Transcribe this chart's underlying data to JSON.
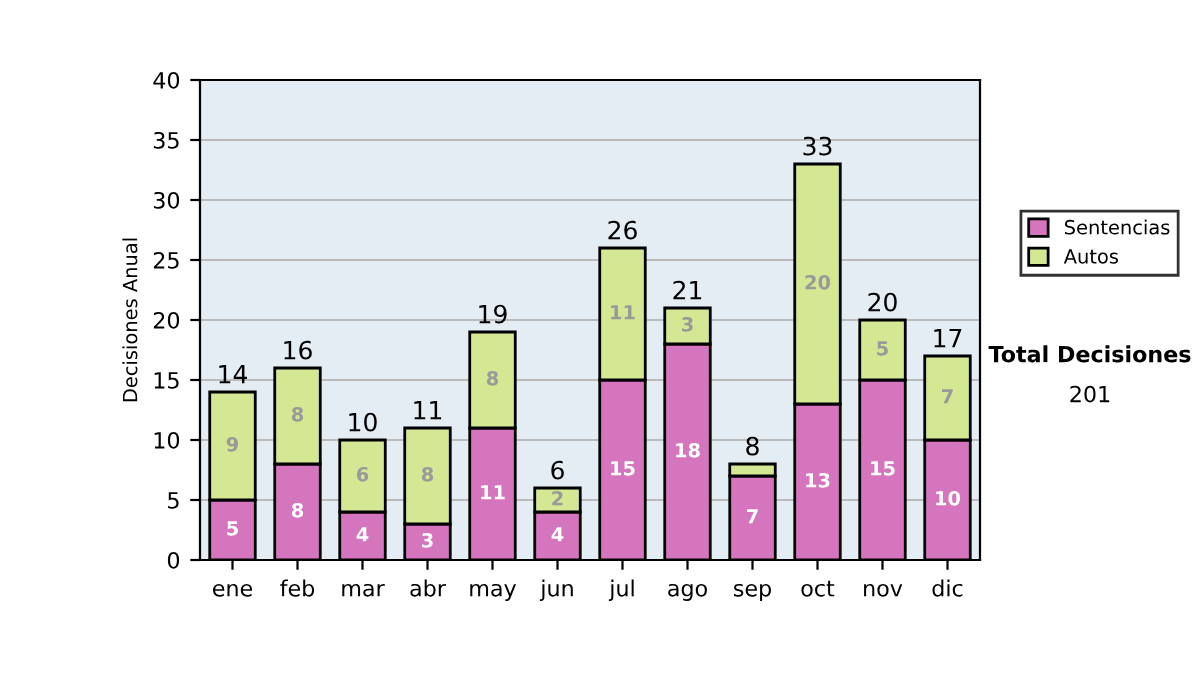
{
  "chart_data": {
    "type": "bar",
    "stacked": true,
    "ylabel": "Decisiones Anual",
    "categories": [
      "ene",
      "feb",
      "mar",
      "abr",
      "may",
      "jun",
      "jul",
      "ago",
      "sep",
      "oct",
      "nov",
      "dic"
    ],
    "series": [
      {
        "name": "Sentencias",
        "color": "#d575be",
        "values": [
          5,
          8,
          4,
          3,
          11,
          4,
          15,
          18,
          7,
          13,
          15,
          10
        ],
        "value_labels": [
          "5",
          "8",
          "4",
          "3",
          "11",
          "4",
          "15",
          "18",
          "7",
          "13",
          "15",
          "10"
        ]
      },
      {
        "name": "Autos",
        "color": "#d4e894",
        "values": [
          9,
          8,
          6,
          8,
          8,
          2,
          11,
          3,
          1,
          20,
          5,
          7
        ],
        "value_labels": [
          "9",
          "8",
          "6",
          "8",
          "8",
          "2",
          "11",
          "3",
          null,
          "20",
          "5",
          "7"
        ]
      }
    ],
    "totals": [
      "14",
      "16",
      "10",
      "11",
      "19",
      "6",
      "26",
      "21",
      "8",
      "33",
      "20",
      "17"
    ],
    "ylim": [
      0,
      40
    ],
    "yticks": [
      0,
      5,
      10,
      15,
      20,
      25,
      30,
      35,
      40
    ],
    "grid": "y",
    "legend": "right",
    "annotations": [
      "Total Decisiones",
      "201"
    ]
  }
}
